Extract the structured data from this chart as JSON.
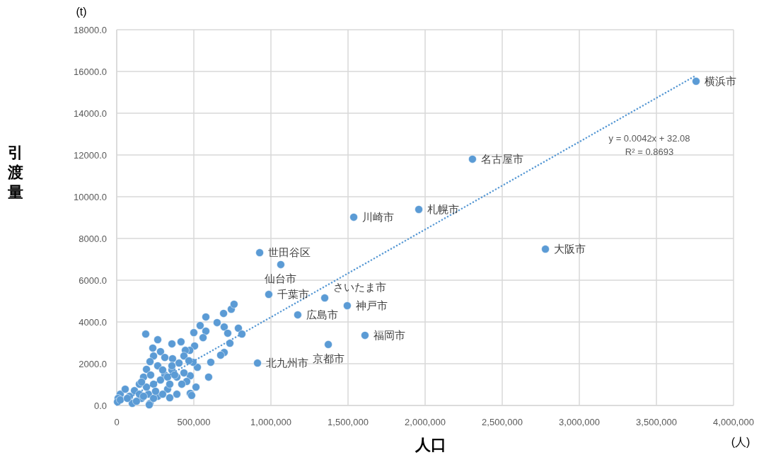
{
  "chart_data": {
    "type": "scatter",
    "xlabel": "人口",
    "ylabel": "引渡量",
    "xlim": [
      0,
      4000000
    ],
    "ylim": [
      0,
      18000
    ],
    "xticks": [
      {
        "value": 0,
        "label": "0"
      },
      {
        "value": 500000,
        "label": "500,000"
      },
      {
        "value": 1000000,
        "label": "1,000,000"
      },
      {
        "value": 1500000,
        "label": "1,500,000"
      },
      {
        "value": 2000000,
        "label": "2,000,000"
      },
      {
        "value": 2500000,
        "label": "2,500,000"
      },
      {
        "value": 3000000,
        "label": "3,000,000"
      },
      {
        "value": 3500000,
        "label": "3,500,000"
      },
      {
        "value": 4000000,
        "label": "4,000,000"
      }
    ],
    "yticks": [
      {
        "value": 0,
        "label": "0.0"
      },
      {
        "value": 2000,
        "label": "2000.0"
      },
      {
        "value": 4000,
        "label": "4000.0"
      },
      {
        "value": 6000,
        "label": "6000.0"
      },
      {
        "value": 8000,
        "label": "8000.0"
      },
      {
        "value": 10000,
        "label": "10000.0"
      },
      {
        "value": 12000,
        "label": "12000.0"
      },
      {
        "value": 14000,
        "label": "14000.0"
      },
      {
        "value": 16000,
        "label": "16000.0"
      },
      {
        "value": 18000,
        "label": "18000.0"
      }
    ],
    "grid": true,
    "marker": "circle",
    "series": [
      {
        "color": "#5b9bd5",
        "x": [
          3757000,
          2307000,
          1959000,
          1537000,
          2780000,
          927000,
          1064000,
          986000,
          1349000,
          1495000,
          1174000,
          1610000,
          1372000,
          913000,
          188000,
          266000,
          358000,
          417000,
          234000,
          500000,
          541000,
          578000,
          578000,
          560000,
          651000,
          693000,
          743000,
          761000,
          697000,
          720000,
          789000,
          812000,
          734000,
          697000,
          674000,
          610000,
          596000,
          514000,
          477000,
          486000,
          344000,
          477000,
          454000,
          523000,
          505000,
          474000,
          445000,
          495000,
          239000,
          284000,
          312000,
          216000,
          193000,
          362000,
          404000,
          436000,
          358000,
          312000,
          266000,
          174000,
          147000,
          239000,
          284000,
          390000,
          422000,
          330000,
          390000,
          266000,
          206000,
          115000,
          83000,
          23000,
          55000,
          9000,
          5000,
          101000,
          161000,
          216000,
          147000,
          193000,
          330000,
          358000,
          468000,
          23000,
          69000,
          128000,
          239000,
          298000,
          174000,
          252000,
          344000,
          376000,
          436000,
          298000,
          220000,
          161000,
          211000
        ],
        "values": [
          15530,
          11800,
          9390,
          9020,
          7490,
          7320,
          6750,
          5320,
          5150,
          4780,
          4340,
          3360,
          2920,
          2030,
          3420,
          3150,
          2950,
          3050,
          2750,
          3490,
          3830,
          4240,
          3560,
          3250,
          3970,
          4410,
          4610,
          4850,
          3760,
          3460,
          3700,
          3420,
          2980,
          2540,
          2410,
          2070,
          1360,
          880,
          580,
          480,
          370,
          1420,
          1150,
          1830,
          2850,
          2640,
          2640,
          2070,
          2370,
          2580,
          2300,
          2100,
          1730,
          2240,
          2030,
          2370,
          1700,
          1460,
          1900,
          1360,
          1020,
          1020,
          1220,
          1360,
          1020,
          780,
          540,
          440,
          540,
          710,
          440,
          540,
          780,
          340,
          170,
          100,
          340,
          100,
          540,
          880,
          1360,
          1900,
          2140,
          270,
          340,
          200,
          340,
          540,
          440,
          680,
          1020,
          1460,
          1560,
          1700,
          1460,
          1120,
          30
        ]
      },
      {
        "type": "line",
        "color": "#5b9bd5",
        "line_style": "dotted",
        "marker": "none",
        "x": [
          0,
          3757000
        ],
        "values": [
          30,
          15810
        ]
      }
    ],
    "annotations": [
      {
        "text": "横浜市",
        "x": 3757000,
        "y": 15530
      },
      {
        "text": "名古屋市",
        "x": 2307000,
        "y": 11800
      },
      {
        "text": "札幌市",
        "x": 1959000,
        "y": 9390
      },
      {
        "text": "川崎市",
        "x": 1537000,
        "y": 9020
      },
      {
        "text": "大阪市",
        "x": 2780000,
        "y": 7490
      },
      {
        "text": "世田谷区",
        "x": 927000,
        "y": 7320
      },
      {
        "text": "仙台市",
        "x": 1064000,
        "y": 6750
      },
      {
        "text": "千葉市",
        "x": 986000,
        "y": 5320
      },
      {
        "text": "さいたま市",
        "x": 1349000,
        "y": 5150
      },
      {
        "text": "神戸市",
        "x": 1495000,
        "y": 4780
      },
      {
        "text": "広島市",
        "x": 1174000,
        "y": 4340
      },
      {
        "text": "福岡市",
        "x": 1610000,
        "y": 3360
      },
      {
        "text": "京都市",
        "x": 1372000,
        "y": 2920
      },
      {
        "text": "北九州市",
        "x": 913000,
        "y": 2030
      },
      "y = 0.0042x + 32.08",
      "R² = 0.8693",
      "(t)",
      "(人)"
    ]
  }
}
